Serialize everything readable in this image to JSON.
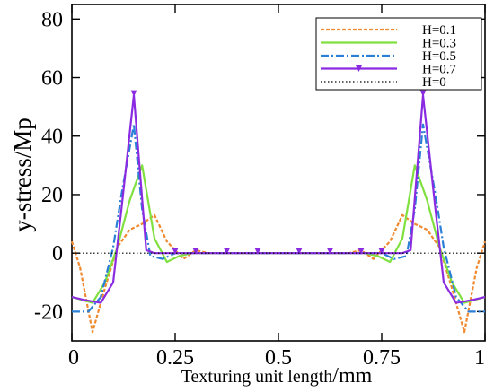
{
  "chart_data": {
    "type": "line",
    "title": "",
    "xlabel_main": "Texturing unit length",
    "xlabel_unit": "/mm",
    "ylabel": "y-stress/Mp",
    "xlim": [
      0,
      1
    ],
    "ylim": [
      -30,
      85
    ],
    "x_ticks": [
      0,
      0.25,
      0.5,
      0.75,
      1
    ],
    "x_tick_labels": [
      "0",
      "0.25",
      "0.5",
      "0.75",
      "1"
    ],
    "y_ticks": [
      -20,
      0,
      20,
      40,
      60,
      80
    ],
    "y_tick_labels": [
      "-20",
      "0",
      "20",
      "40",
      "60",
      "80"
    ],
    "grid": false,
    "legend_position": "top-right",
    "series": [
      {
        "name": "H=0.1",
        "color": "#f08a30",
        "dash": "short-dash",
        "x": [
          0,
          0.02,
          0.05,
          0.08,
          0.11,
          0.14,
          0.17,
          0.2,
          0.23,
          0.27,
          0.3,
          0.33,
          0.4,
          0.5,
          0.6,
          0.67,
          0.7,
          0.73,
          0.77,
          0.8,
          0.83,
          0.86,
          0.89,
          0.92,
          0.95,
          0.98,
          1
        ],
        "y": [
          4,
          -5,
          -27,
          -12,
          2,
          8,
          10,
          13,
          4,
          -2,
          1,
          0,
          0,
          0,
          0,
          0,
          1,
          -2,
          4,
          13,
          10,
          8,
          2,
          -12,
          -27,
          -5,
          4
        ]
      },
      {
        "name": "H=0.3",
        "color": "#80e040",
        "dash": "solid",
        "x": [
          0,
          0.05,
          0.08,
          0.11,
          0.14,
          0.17,
          0.2,
          0.23,
          0.26,
          0.29,
          0.33,
          0.4,
          0.5,
          0.6,
          0.67,
          0.71,
          0.74,
          0.77,
          0.8,
          0.83,
          0.86,
          0.89,
          0.92,
          0.95,
          1
        ],
        "y": [
          -15,
          -17,
          -10,
          2,
          18,
          30,
          5,
          -3,
          -1,
          0,
          0,
          0,
          0,
          0,
          0,
          0,
          -1,
          -3,
          5,
          30,
          18,
          2,
          -10,
          -17,
          -15
        ]
      },
      {
        "name": "H=0.5",
        "color": "#2a7fd6",
        "dash": "dash-dot",
        "x": [
          0,
          0.04,
          0.07,
          0.1,
          0.12,
          0.15,
          0.17,
          0.19,
          0.22,
          0.25,
          0.3,
          0.4,
          0.5,
          0.6,
          0.7,
          0.75,
          0.78,
          0.81,
          0.83,
          0.85,
          0.88,
          0.9,
          0.93,
          0.96,
          1
        ],
        "y": [
          -20,
          -20,
          -15,
          2,
          20,
          44,
          15,
          -1,
          -2,
          0,
          0,
          0,
          0,
          0,
          0,
          0,
          -2,
          -1,
          15,
          44,
          20,
          2,
          -15,
          -20,
          -20
        ]
      },
      {
        "name": "H=0.7",
        "color": "#8a2be2",
        "dash": "solid",
        "marker": "triangle-down",
        "x": [
          0,
          0.03,
          0.07,
          0.1,
          0.12,
          0.15,
          0.18,
          0.2,
          0.25,
          0.3,
          0.375,
          0.45,
          0.5,
          0.55,
          0.625,
          0.7,
          0.75,
          0.8,
          0.82,
          0.85,
          0.88,
          0.9,
          0.93,
          0.97,
          1
        ],
        "y": [
          -15,
          -16,
          -17,
          -10,
          15,
          54,
          1,
          0,
          0,
          0,
          0,
          0,
          0,
          0,
          0,
          0,
          0,
          0,
          1,
          54,
          15,
          -10,
          -17,
          -16,
          -15
        ],
        "marker_x": [
          0.15,
          0.25,
          0.3,
          0.375,
          0.45,
          0.55,
          0.625,
          0.7,
          0.75,
          0.85
        ]
      },
      {
        "name": "H=0",
        "color": "#000000",
        "dash": "dotted",
        "x": [
          0,
          1
        ],
        "y": [
          0,
          0
        ]
      }
    ]
  }
}
